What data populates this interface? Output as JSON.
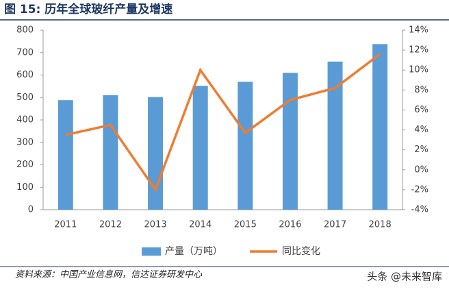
{
  "chart_data": {
    "type": "bar-line",
    "title": "图 15:  历年全球玻纤产量及增速",
    "source": "资料来源：中国产业信息网，信达证券研发中心",
    "categories": [
      "2011",
      "2012",
      "2013",
      "2014",
      "2015",
      "2016",
      "2017",
      "2018"
    ],
    "series": [
      {
        "name": "产量（万吨）",
        "type": "bar",
        "color": "#5b9bd5",
        "values": [
          488,
          510,
          502,
          552,
          570,
          610,
          660,
          738
        ]
      },
      {
        "name": "同比变化",
        "type": "line",
        "axis": "y2",
        "color": "#ed7d31",
        "values": [
          3.5,
          4.5,
          -2,
          10,
          3.7,
          7,
          8.2,
          11.6
        ]
      }
    ],
    "ylim": [
      0,
      800
    ],
    "yticks": [
      0,
      100,
      200,
      300,
      400,
      500,
      600,
      700,
      800
    ],
    "y2lim": [
      -4,
      14
    ],
    "y2ticks": [
      {
        "value": -4,
        "label": "-4%"
      },
      {
        "value": -2,
        "label": "-2%"
      },
      {
        "value": 0,
        "label": "0%"
      },
      {
        "value": 2,
        "label": "2%"
      },
      {
        "value": 4,
        "label": "4%"
      },
      {
        "value": 6,
        "label": "6%"
      },
      {
        "value": 8,
        "label": "8%"
      },
      {
        "value": 10,
        "label": "10%"
      },
      {
        "value": 12,
        "label": "12%"
      },
      {
        "value": 14,
        "label": "14%"
      }
    ],
    "grid": false,
    "legend": "bottom"
  },
  "watermark": "头条 @未来智库"
}
